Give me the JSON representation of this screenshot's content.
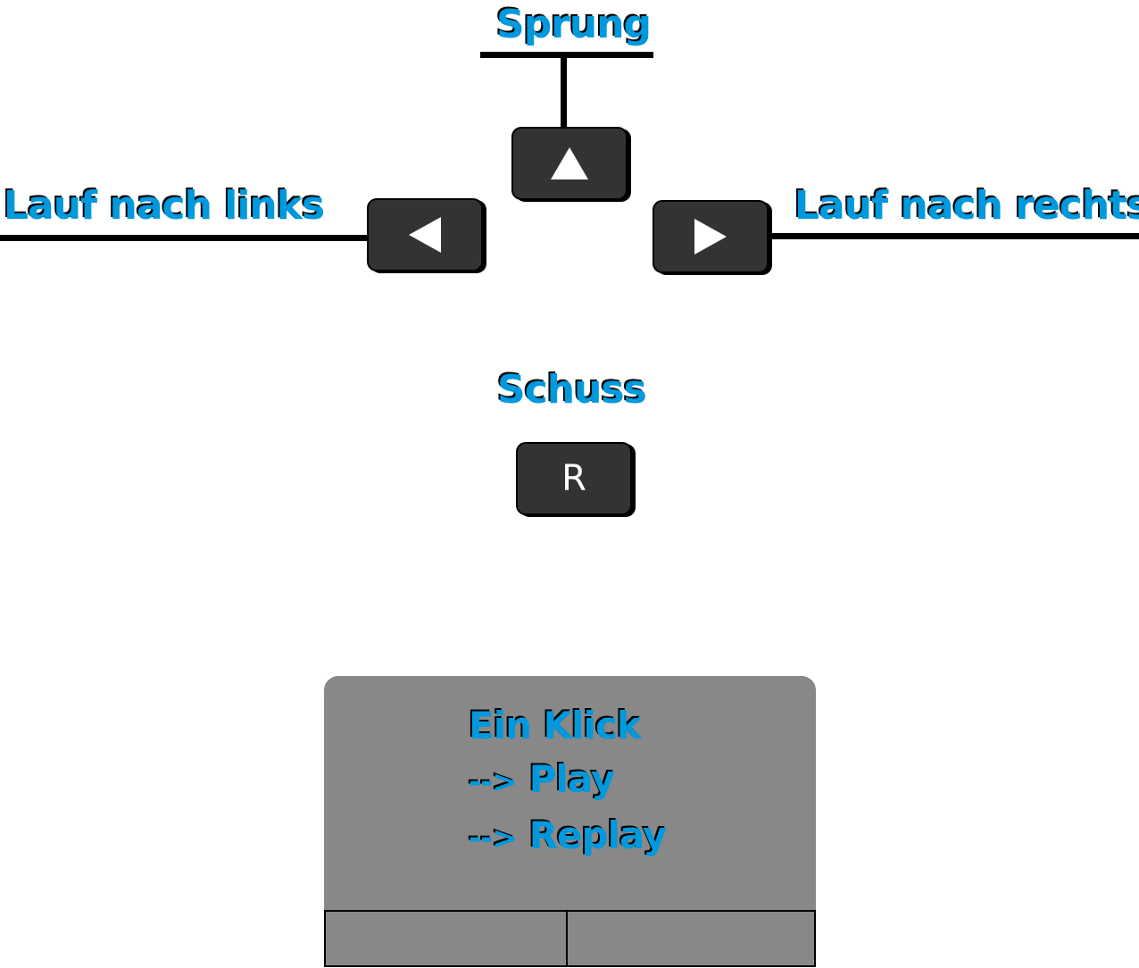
{
  "labels": {
    "jump": "Sprung",
    "left": "Lauf nach links",
    "right": "Lauf nach rechts",
    "shoot": "Schuss"
  },
  "keys": {
    "up": {
      "icon": "arrow-up-icon"
    },
    "left": {
      "icon": "arrow-left-icon"
    },
    "right": {
      "icon": "arrow-right-icon"
    },
    "shoot": {
      "label": "R"
    }
  },
  "touchpad": {
    "title": "Ein Klick",
    "options": [
      {
        "arrow": "-->",
        "label": "Play"
      },
      {
        "arrow": "-->",
        "label": "Replay"
      }
    ]
  },
  "colors": {
    "label_text": "#0099dd",
    "label_shadow": "#000000",
    "key_fill": "#333333",
    "touchpad_fill": "#888888",
    "background": "#ffffff"
  }
}
